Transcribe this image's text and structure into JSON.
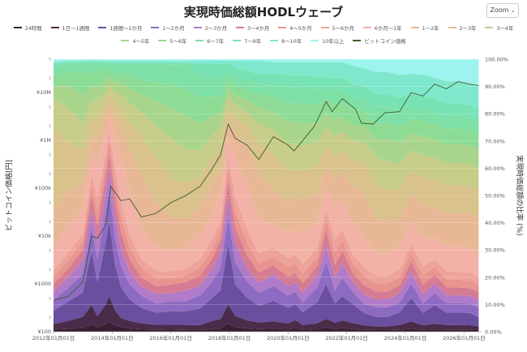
{
  "title": "実現時価総額HODLウェーブ",
  "zoom_label": "Zoom",
  "colors": {
    "bands": [
      "#3a1f32",
      "#4a2c4a",
      "#6a4f9f",
      "#8d6bc2",
      "#b07bc8",
      "#d67c92",
      "#e8948f",
      "#eea39a",
      "#f2b2a7",
      "#e8b896",
      "#d9c28c",
      "#c7cc88",
      "#a9d48c",
      "#8cdc96",
      "#7ee0a6",
      "#77e2b4",
      "#7fe8cc",
      "#9ff3ee"
    ],
    "price_line": "#3d5c2f"
  },
  "chart_data": {
    "type": "area",
    "stacked": true,
    "title": "実現時価総額HODLウェーブ",
    "xlabel": "",
    "ylabel_left": "ビットコイン価格[円]",
    "ylabel_right": "実現時価総額の比率 (%)",
    "x_range": [
      "2012-01-01",
      "2026-07-01"
    ],
    "x_ticks": [
      "2012年01月01日",
      "2014年01月01日",
      "2016年01月01日",
      "2018年01月01日",
      "2020年01月01日",
      "2022年01月01日",
      "2024年01月01日",
      "2026年01月01日"
    ],
    "y_left_scale": "log",
    "y_left_range": [
      100,
      50000000
    ],
    "y_left_ticks": [
      "¥100",
      "¥1000",
      "¥10k",
      "¥100k",
      "¥1M",
      "¥10M"
    ],
    "y_left_minor_labels": [
      "2",
      "5"
    ],
    "y_right_range": [
      0,
      100
    ],
    "y_right_ticks": [
      "0.00%",
      "10.00%",
      "20.00%",
      "30.00%",
      "40.00%",
      "50.00%",
      "60.00%",
      "70.00%",
      "80.00%",
      "90.00%",
      "100.00%"
    ],
    "x_years": [
      2012.0,
      2012.5,
      2013.0,
      2013.3,
      2013.5,
      2013.8,
      2013.9,
      2014.1,
      2014.3,
      2014.6,
      2015.0,
      2015.5,
      2016.0,
      2016.5,
      2017.0,
      2017.4,
      2017.7,
      2017.96,
      2018.2,
      2018.6,
      2019.0,
      2019.5,
      2020.0,
      2020.25,
      2020.5,
      2021.0,
      2021.3,
      2021.6,
      2021.85,
      2022.2,
      2022.6,
      2023.0,
      2023.4,
      2023.8,
      2024.2,
      2024.6,
      2025.0,
      2025.4,
      2025.8,
      2026.2,
      2026.5
    ],
    "series": [
      {
        "name": "24時間",
        "values": [
          0.8,
          1,
          1.5,
          3,
          1.5,
          3,
          4,
          2,
          1.5,
          1,
          0.8,
          0.7,
          0.6,
          0.5,
          0.5,
          0.8,
          1,
          3,
          1.5,
          1,
          0.8,
          1,
          0.7,
          1.2,
          0.6,
          0.8,
          1.5,
          0.8,
          1.2,
          0.8,
          0.6,
          0.5,
          0.5,
          0.6,
          1,
          0.6,
          0.8,
          0.6,
          0.6,
          0.6,
          0.5
        ]
      },
      {
        "name": "1日〜1週間",
        "values": [
          2,
          3,
          4,
          8,
          4,
          8,
          10,
          5,
          3,
          2.5,
          2,
          1.5,
          1.5,
          1.5,
          1.5,
          2.5,
          3,
          7,
          3.5,
          2.5,
          2,
          2.5,
          2,
          2.5,
          1.5,
          2,
          3,
          2,
          2.5,
          2,
          1.5,
          1.2,
          1.2,
          1.5,
          2.5,
          1.5,
          1.8,
          1.5,
          1.5,
          1.5,
          1.2
        ]
      },
      {
        "name": "1週間〜1か月",
        "values": [
          5,
          7,
          9,
          22,
          12,
          25,
          30,
          15,
          10,
          7,
          5,
          4,
          4,
          4,
          5,
          7,
          9,
          22,
          10,
          7,
          5,
          7,
          5,
          5,
          4,
          7,
          12,
          6,
          8,
          6,
          4,
          3,
          3,
          4,
          8,
          4,
          6,
          4,
          4,
          4,
          3
        ]
      },
      {
        "name": "1〜2か月",
        "values": [
          4,
          5,
          7,
          10,
          8,
          12,
          12,
          9,
          7,
          5,
          4,
          3,
          3,
          3,
          4,
          5,
          7,
          10,
          7,
          5,
          4,
          5,
          4,
          4,
          3,
          5,
          8,
          4,
          6,
          4,
          3,
          3,
          3,
          3,
          5,
          3,
          4,
          3,
          3,
          3,
          3
        ]
      },
      {
        "name": "2〜3か月",
        "values": [
          3,
          4,
          5,
          7,
          6,
          8,
          8,
          7,
          6,
          4,
          3,
          3,
          2.5,
          3,
          3,
          4,
          5,
          7,
          6,
          4,
          3,
          4,
          3,
          3,
          3,
          4,
          6,
          4,
          5,
          3,
          3,
          2.5,
          2.5,
          3,
          4,
          3,
          3,
          2.5,
          2.5,
          2.5,
          2.5
        ]
      },
      {
        "name": "3〜4か月",
        "values": [
          3,
          3,
          4,
          6,
          6,
          6,
          6,
          6,
          5,
          4,
          3,
          2.5,
          2.5,
          2.5,
          3,
          3,
          4,
          6,
          5,
          4,
          3,
          3,
          3,
          3,
          3,
          3,
          5,
          4,
          4,
          3,
          3,
          2.5,
          2.5,
          2.5,
          3.5,
          3,
          3,
          2.5,
          2.5,
          2.5,
          2.5
        ]
      },
      {
        "name": "4〜5か月",
        "values": [
          2.5,
          3,
          3,
          5,
          5,
          5,
          5,
          5,
          5,
          4,
          3,
          2.5,
          2,
          2,
          2.5,
          3,
          3,
          5,
          5,
          4,
          3,
          3,
          3,
          3,
          3,
          3,
          4,
          4,
          3.5,
          3,
          3,
          2.5,
          2.5,
          2.5,
          3,
          3,
          2.5,
          2.5,
          2.5,
          2.5,
          2.5
        ]
      },
      {
        "name": "5〜6か月",
        "values": [
          2.5,
          3,
          3,
          4,
          5,
          4,
          4,
          5,
          5,
          4,
          3,
          2.5,
          2,
          2,
          2.5,
          3,
          3,
          4,
          5,
          4,
          3,
          3,
          3,
          3,
          3,
          3,
          3.5,
          4,
          3.5,
          3,
          3,
          2.5,
          2.5,
          2.5,
          3,
          3,
          2.5,
          2.5,
          2.5,
          2.5,
          2.5
        ]
      },
      {
        "name": "6か月〜1年",
        "values": [
          8,
          10,
          9,
          8,
          12,
          8,
          6,
          10,
          14,
          14,
          10,
          8,
          6,
          6,
          7,
          8,
          8,
          7,
          12,
          14,
          10,
          8,
          8,
          8,
          9,
          8,
          7,
          10,
          10,
          10,
          10,
          7,
          7,
          7,
          8,
          9,
          7,
          8,
          8,
          8,
          8
        ]
      },
      {
        "name": "1〜2年",
        "values": [
          15,
          12,
          10,
          7,
          8,
          6,
          5,
          6,
          10,
          14,
          18,
          14,
          10,
          9,
          9,
          9,
          8,
          6,
          8,
          12,
          14,
          12,
          10,
          10,
          11,
          10,
          8,
          9,
          9,
          12,
          14,
          11,
          10,
          9,
          9,
          11,
          10,
          10,
          11,
          11,
          11
        ]
      },
      {
        "name": "2〜3年",
        "values": [
          30,
          18,
          12,
          8,
          8,
          5,
          4,
          5,
          6,
          9,
          12,
          15,
          12,
          10,
          9,
          8,
          7,
          5,
          5,
          6,
          9,
          12,
          10,
          9,
          9,
          9,
          7,
          7,
          7,
          8,
          10,
          11,
          10,
          9,
          8,
          9,
          9,
          9,
          9,
          9,
          9
        ]
      },
      {
        "name": "3〜4年",
        "values": [
          10.2,
          13,
          10,
          7,
          6,
          4,
          3,
          4,
          5,
          6,
          8,
          10,
          12,
          10,
          8,
          7,
          6,
          4,
          4,
          4,
          6,
          8,
          9,
          8,
          8,
          8,
          6,
          6,
          6,
          6,
          7,
          8,
          9,
          8,
          7,
          7,
          7,
          7,
          7,
          7,
          7
        ]
      },
      {
        "name": "4〜5年",
        "values": [
          5,
          8,
          10,
          6,
          5,
          4,
          3,
          3,
          4,
          5,
          6,
          8,
          9,
          10,
          8,
          6,
          5,
          3,
          3,
          4,
          5,
          6,
          7,
          7,
          7,
          6,
          5,
          5,
          5,
          5,
          5,
          6,
          7,
          7,
          6,
          6,
          6,
          6,
          6,
          6,
          6
        ]
      },
      {
        "name": "5〜6年",
        "values": [
          4,
          5,
          8,
          6,
          5,
          4,
          3,
          3,
          3,
          4,
          5,
          6,
          7,
          8,
          8,
          6,
          5,
          3,
          3,
          3,
          4,
          5,
          6,
          6,
          6,
          6,
          5,
          5,
          5,
          5,
          5,
          5,
          5,
          5,
          5,
          5,
          5,
          5,
          5,
          5,
          5
        ]
      },
      {
        "name": "6〜7年",
        "values": [
          3,
          3,
          4,
          3.5,
          3,
          3,
          2.5,
          3,
          3,
          4,
          5,
          6,
          6,
          7,
          7,
          6,
          5,
          3,
          3,
          3,
          3,
          4,
          5,
          5,
          5,
          5,
          4,
          4,
          4,
          4,
          4,
          5,
          5,
          5,
          4,
          4,
          4,
          4,
          4,
          4,
          4
        ]
      },
      {
        "name": "7〜8年",
        "values": [
          1,
          0.5,
          0.5,
          0.5,
          0.5,
          0.5,
          0.5,
          0.5,
          0.5,
          0.5,
          0.5,
          0.5,
          0.5,
          0.5,
          3,
          4,
          5,
          3,
          3,
          3,
          3,
          4,
          4,
          4,
          4,
          4,
          4,
          4,
          4,
          4,
          4,
          4,
          4,
          4,
          4,
          4,
          4,
          4,
          4,
          4,
          4
        ]
      },
      {
        "name": "8〜10年",
        "values": [
          1,
          0.5,
          0.5,
          0.5,
          0.5,
          0.5,
          0.5,
          0.5,
          0.5,
          0.5,
          0.5,
          0.5,
          0.5,
          0.5,
          1,
          1,
          1,
          1,
          2,
          3,
          4,
          4,
          4,
          4,
          4,
          5,
          5,
          5,
          5,
          6,
          6,
          7,
          7,
          7,
          7,
          7,
          7,
          7,
          7,
          7,
          7
        ]
      },
      {
        "name": "10年以上",
        "values": [
          1,
          0.5,
          0.5,
          0.5,
          0.5,
          0.5,
          0.5,
          0.5,
          0.5,
          0.5,
          0.5,
          0.5,
          0.5,
          0.5,
          0.5,
          0.5,
          0.5,
          0.5,
          0.5,
          0.5,
          0.5,
          1,
          1,
          1,
          1,
          1,
          1,
          1,
          1,
          2,
          3,
          4,
          4,
          5,
          5,
          5,
          6,
          7,
          7,
          8,
          9
        ]
      }
    ],
    "price": {
      "name": "ビットコイン価格",
      "x": [
        2012.0,
        2012.5,
        2013.0,
        2013.3,
        2013.5,
        2013.8,
        2013.95,
        2014.3,
        2014.6,
        2015.0,
        2015.5,
        2016.0,
        2016.5,
        2017.0,
        2017.4,
        2017.7,
        2017.96,
        2018.2,
        2018.6,
        2019.0,
        2019.5,
        2020.0,
        2020.2,
        2020.5,
        2020.9,
        2021.3,
        2021.5,
        2021.85,
        2022.3,
        2022.5,
        2022.9,
        2023.3,
        2023.8,
        2024.2,
        2024.6,
        2025.0,
        2025.4,
        2025.8,
        2026.2,
        2026.5
      ],
      "y": [
        450,
        550,
        1100,
        10000,
        9000,
        18000,
        110000,
        55000,
        60000,
        25000,
        30000,
        50000,
        70000,
        110000,
        250000,
        500000,
        2200000,
        1100000,
        800000,
        400000,
        1200000,
        800000,
        600000,
        1000000,
        2000000,
        6500000,
        4000000,
        7500000,
        4500000,
        2300000,
        2200000,
        3800000,
        4000000,
        10000000,
        8500000,
        15000000,
        12000000,
        17000000,
        15000000,
        14000000
      ]
    }
  }
}
